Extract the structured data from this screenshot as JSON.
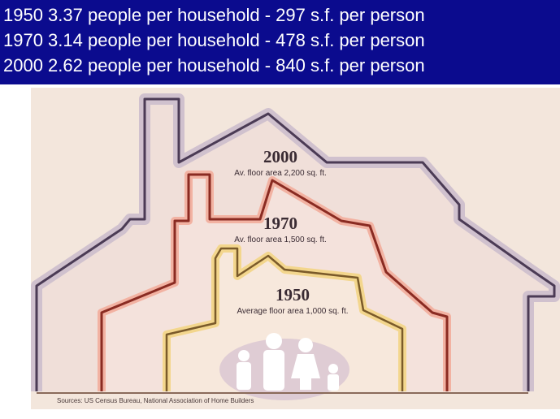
{
  "header": {
    "lines": [
      "1950 3.37 people per household - 297 s.f. per person",
      "1970 3.14 people per household - 478 s.f. per person",
      "2000 2.62 people per household - 840 s.f. per person"
    ]
  },
  "houses": [
    {
      "year": "2000",
      "label": "Av. floor area 2,200 sq. ft."
    },
    {
      "year": "1970",
      "label": "Av. floor area 1,500 sq. ft."
    },
    {
      "year": "1950",
      "label": "Average floor area 1,000 sq. ft."
    }
  ],
  "source": "Sources: US Census Bureau, National Association of Home Builders"
}
